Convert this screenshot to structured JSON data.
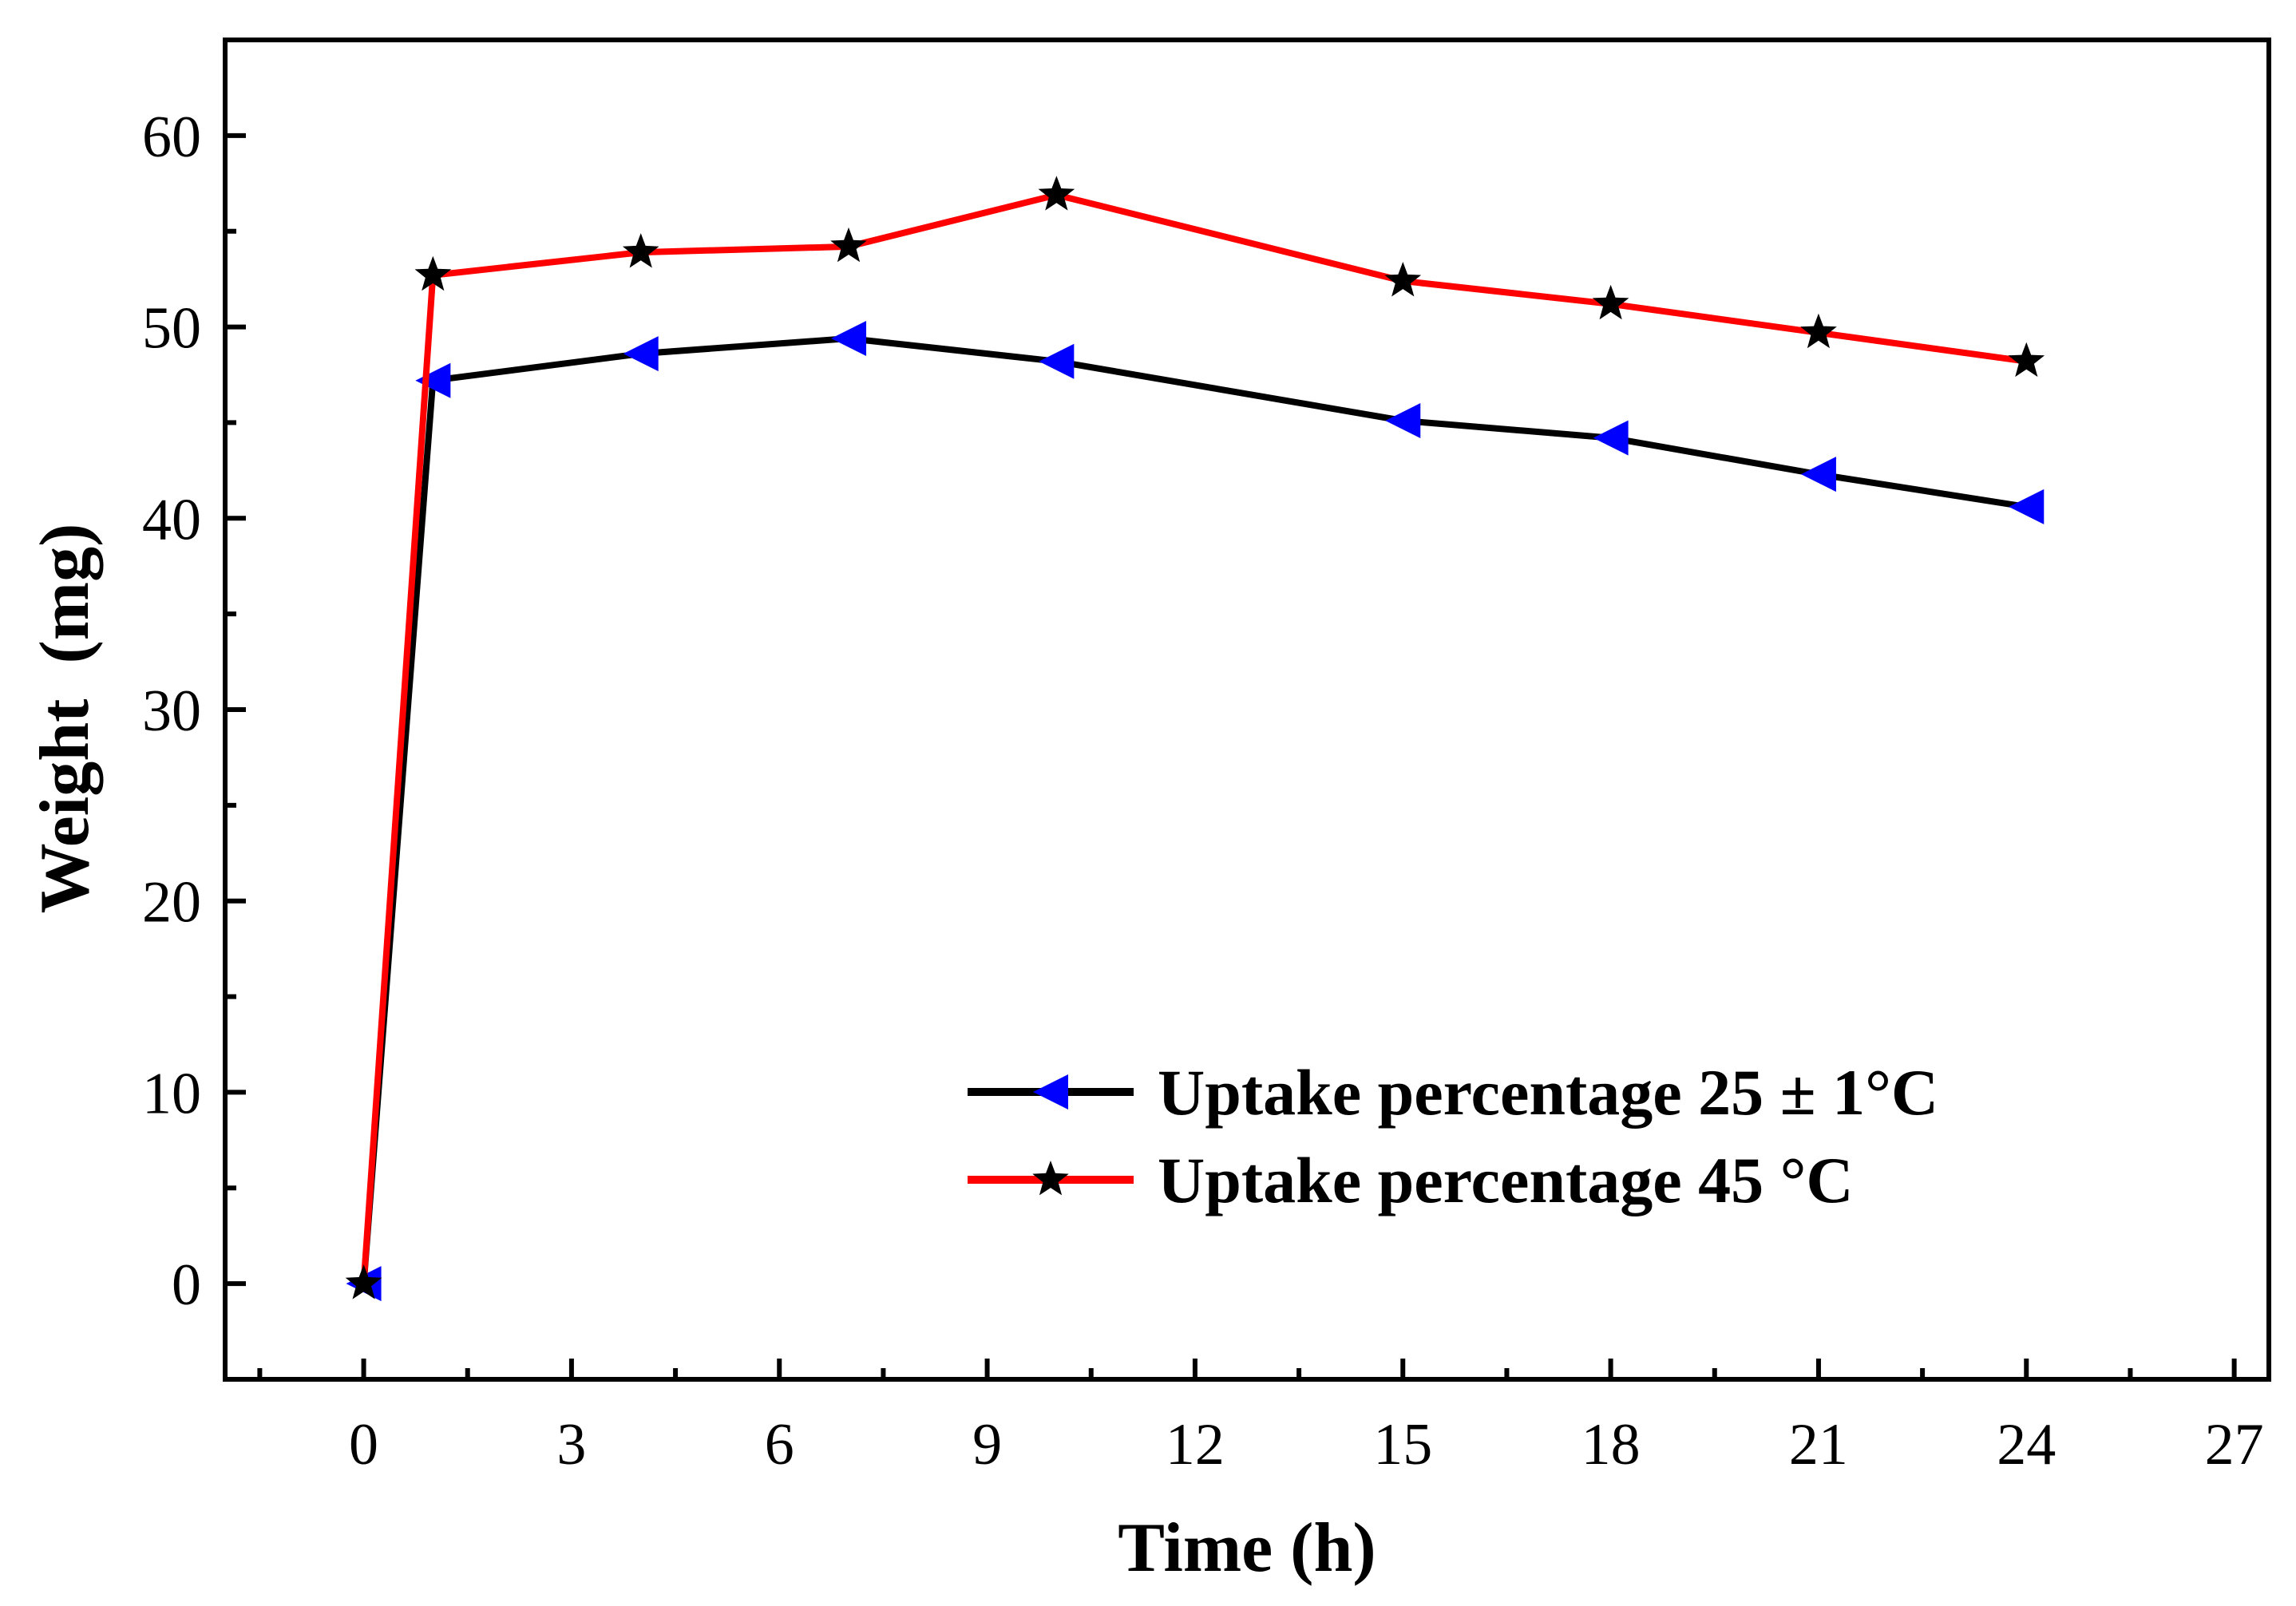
{
  "chart_data": {
    "type": "line",
    "title": "",
    "xlabel": "Time (h)",
    "ylabel": "Weight  (mg)",
    "xlim": [
      -2,
      27.5
    ],
    "ylim": [
      -5,
      65
    ],
    "xticks": [
      0,
      3,
      6,
      9,
      12,
      15,
      18,
      21,
      24,
      27
    ],
    "yticks": [
      0,
      10,
      20,
      30,
      40,
      50,
      60
    ],
    "grid": false,
    "legend_position": "lower-right",
    "series": [
      {
        "name": "Uptake percentage 25  ± 1°C",
        "line_color": "#000000",
        "marker": "left-triangle",
        "marker_color": "#0000ff",
        "x": [
          0,
          1,
          4,
          7,
          10,
          15,
          18,
          21,
          24
        ],
        "y": [
          0,
          47.2,
          48.6,
          49.4,
          48.2,
          45.1,
          44.2,
          42.3,
          40.6
        ]
      },
      {
        "name": "Uptake percentage  45 °C",
        "line_color": "#ff0000",
        "marker": "star",
        "marker_color": "#000000",
        "x": [
          0,
          1,
          4,
          7,
          10,
          15,
          18,
          21,
          24
        ],
        "y": [
          0,
          52.7,
          53.9,
          54.2,
          56.9,
          52.4,
          51.2,
          49.7,
          48.2
        ]
      }
    ]
  }
}
